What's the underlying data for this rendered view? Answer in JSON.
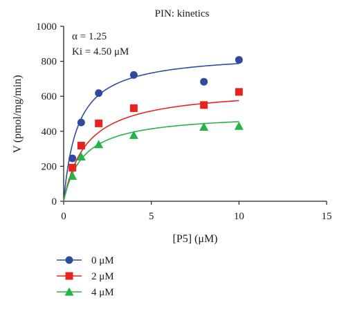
{
  "chart_data": {
    "type": "scatter",
    "title": "PIN: kinetics",
    "xlabel": "[P5] (μM)",
    "ylabel": "V (pmol/mg/min)",
    "xlim": [
      0,
      15
    ],
    "ylim": [
      0,
      1000
    ],
    "xticks": [
      0,
      5,
      10,
      15
    ],
    "yticks": [
      0,
      200,
      400,
      600,
      800,
      1000
    ],
    "grid": false,
    "legend_position": "bottom-left",
    "annotations": [
      "α = 1.25",
      "Ki = 4.50 μM"
    ],
    "series": [
      {
        "name": "0 μM",
        "color": "#2e4a9e",
        "marker": "circle",
        "x": [
          0.5,
          1,
          2,
          4,
          8,
          10
        ],
        "y": [
          245,
          450,
          618,
          722,
          683,
          808
        ],
        "fit": {
          "vmax": 850,
          "km": 0.8
        }
      },
      {
        "name": "2 μM",
        "color": "#e8231f",
        "marker": "square",
        "x": [
          0.5,
          1,
          2,
          4,
          8,
          10
        ],
        "y": [
          192,
          318,
          445,
          532,
          550,
          625
        ],
        "fit": {
          "vmax": 650,
          "km": 1.3
        }
      },
      {
        "name": "4 μM",
        "color": "#25b34a",
        "marker": "triangle",
        "x": [
          0.5,
          1,
          2,
          4,
          8,
          10
        ],
        "y": [
          145,
          255,
          325,
          378,
          425,
          430
        ],
        "fit": {
          "vmax": 505,
          "km": 1.1
        }
      }
    ]
  }
}
